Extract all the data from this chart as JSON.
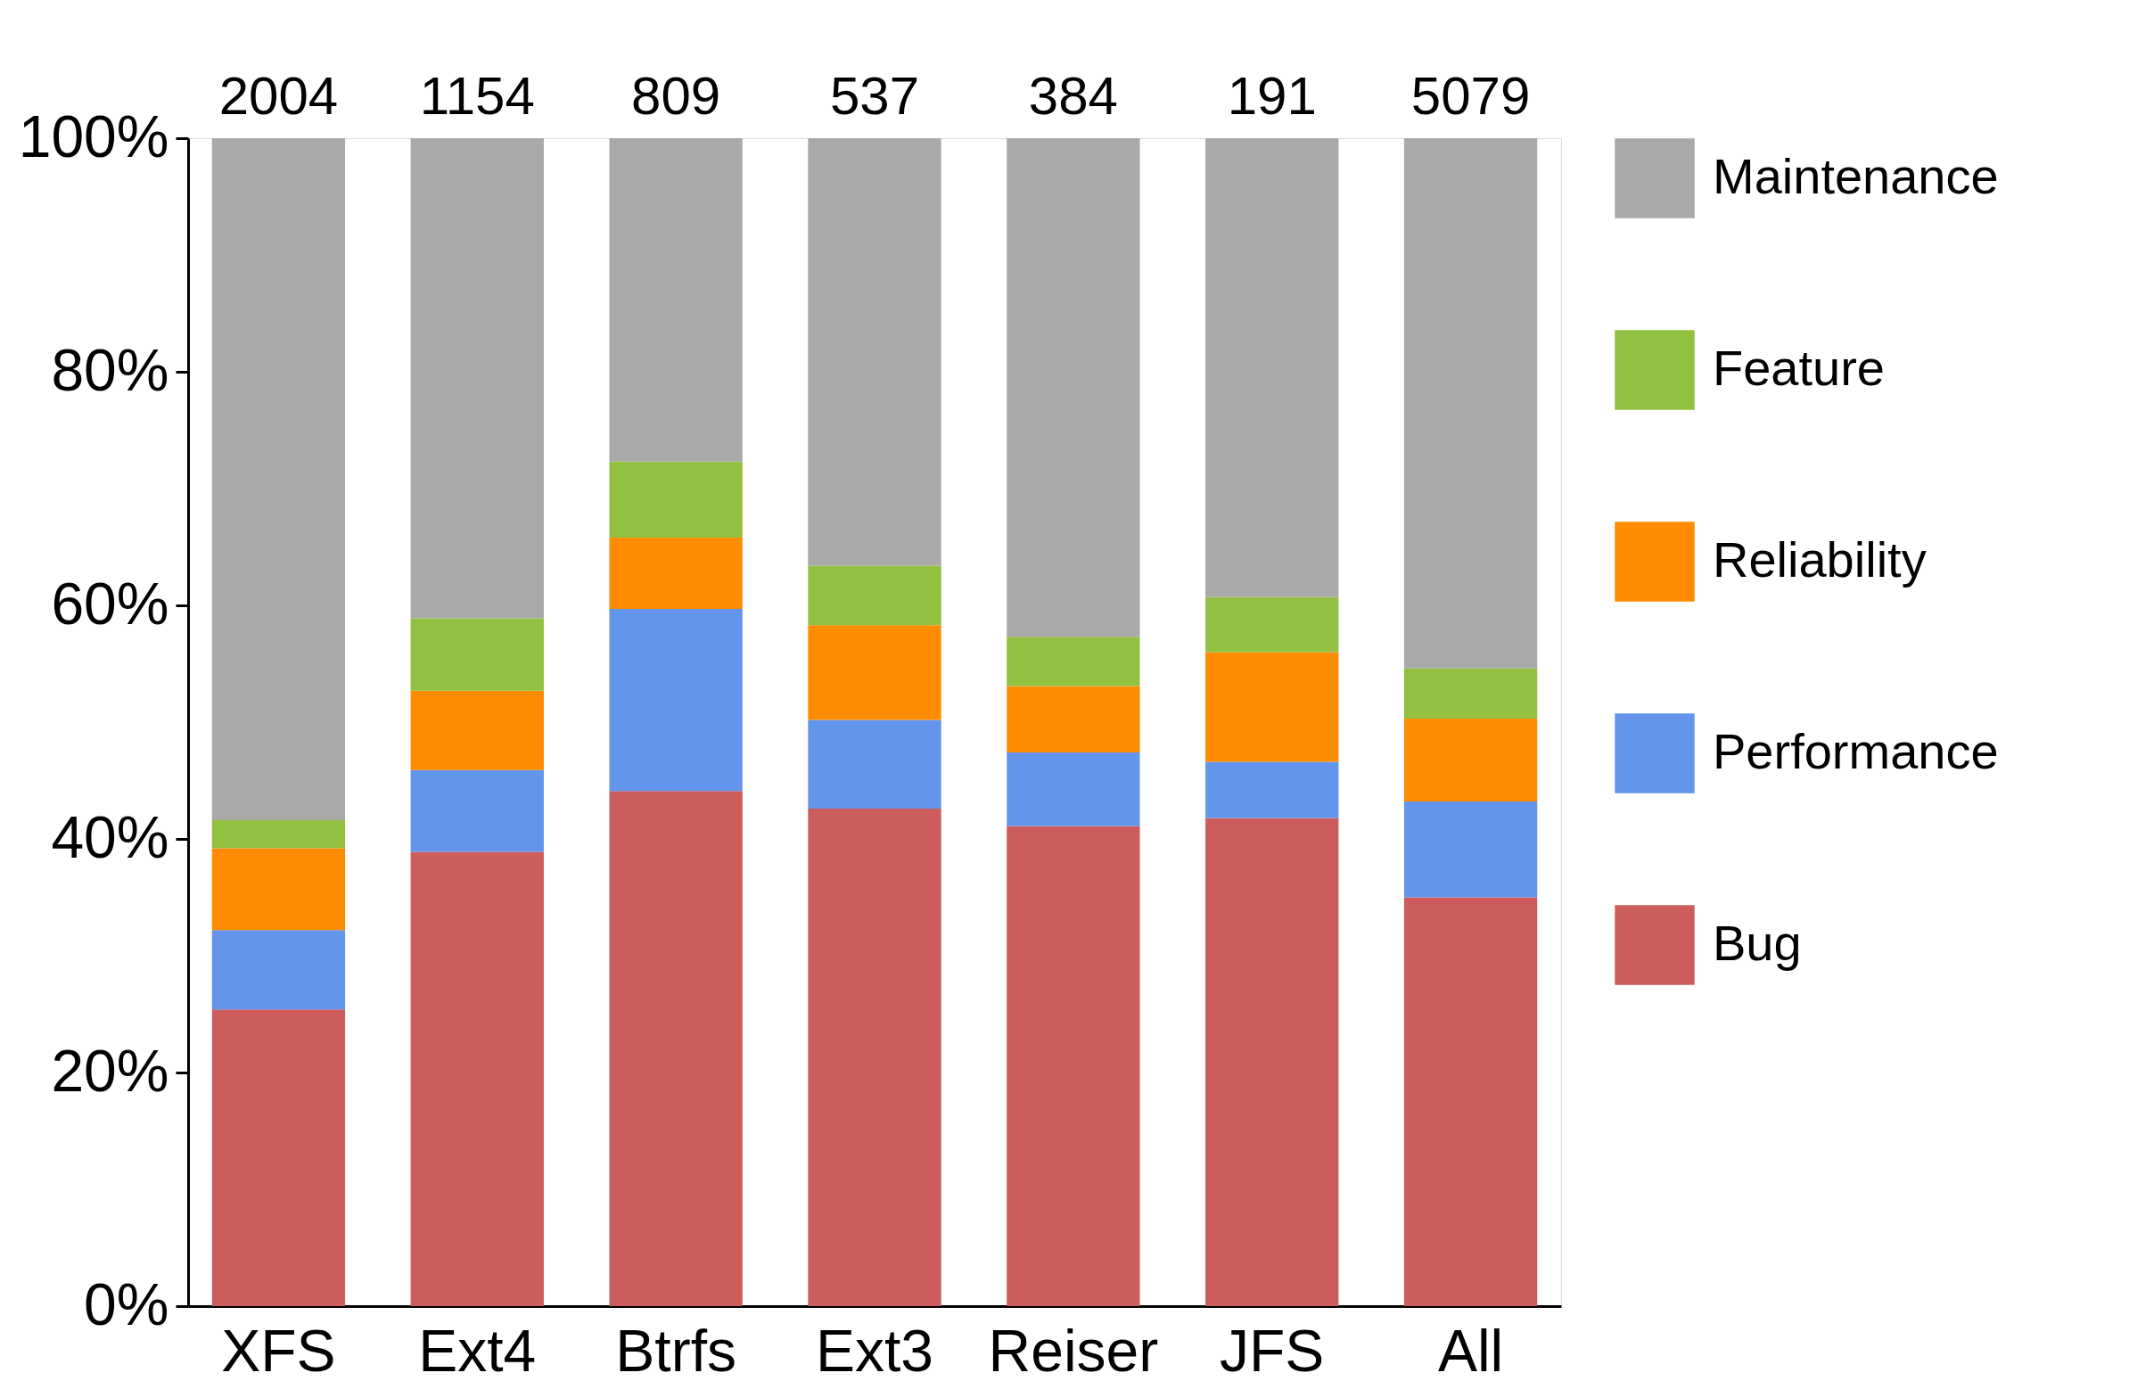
{
  "chart_data": {
    "type": "bar",
    "stacked": true,
    "categories": [
      "XFS",
      "Ext4",
      "Btrfs",
      "Ext3",
      "Reiser",
      "JFS",
      "All"
    ],
    "series": [
      {
        "name": "Bug",
        "color": "#cd5c5c",
        "values": [
          25.4,
          38.9,
          44.1,
          42.6,
          41.1,
          41.8,
          35.0
        ]
      },
      {
        "name": "Performance",
        "color": "#6495ed",
        "values": [
          6.8,
          7.0,
          15.6,
          7.6,
          6.3,
          4.8,
          8.2
        ]
      },
      {
        "name": "Reliability",
        "color": "#ff8c00",
        "values": [
          7.0,
          6.8,
          6.1,
          8.1,
          5.7,
          9.4,
          7.1
        ]
      },
      {
        "name": "Feature",
        "color": "#92c040",
        "values": [
          2.4,
          6.2,
          6.5,
          5.1,
          4.2,
          4.7,
          4.3
        ]
      },
      {
        "name": "Maintenance",
        "color": "#a9a9a9",
        "values": [
          58.4,
          41.1,
          27.7,
          36.6,
          42.7,
          39.3,
          45.4
        ]
      }
    ],
    "annotations": [
      {
        "text": "2004",
        "x": "XFS",
        "y": 100
      },
      {
        "text": "1154",
        "x": "Ext4",
        "y": 100
      },
      {
        "text": "809",
        "x": "Btrfs",
        "y": 100
      },
      {
        "text": "537",
        "x": "Ext3",
        "y": 100
      },
      {
        "text": "384",
        "x": "Reiser",
        "y": 100
      },
      {
        "text": "191",
        "x": "JFS",
        "y": 100
      },
      {
        "text": "5079",
        "x": "All",
        "y": 100
      }
    ],
    "ylim": [
      0,
      100
    ],
    "yticks": [
      {
        "value": 0,
        "label": "0%"
      },
      {
        "value": 20,
        "label": "20%"
      },
      {
        "value": 40,
        "label": "40%"
      },
      {
        "value": 60,
        "label": "60%"
      },
      {
        "value": 80,
        "label": "80%"
      },
      {
        "value": 100,
        "label": "100%"
      }
    ],
    "grid": false,
    "legend": "right"
  }
}
